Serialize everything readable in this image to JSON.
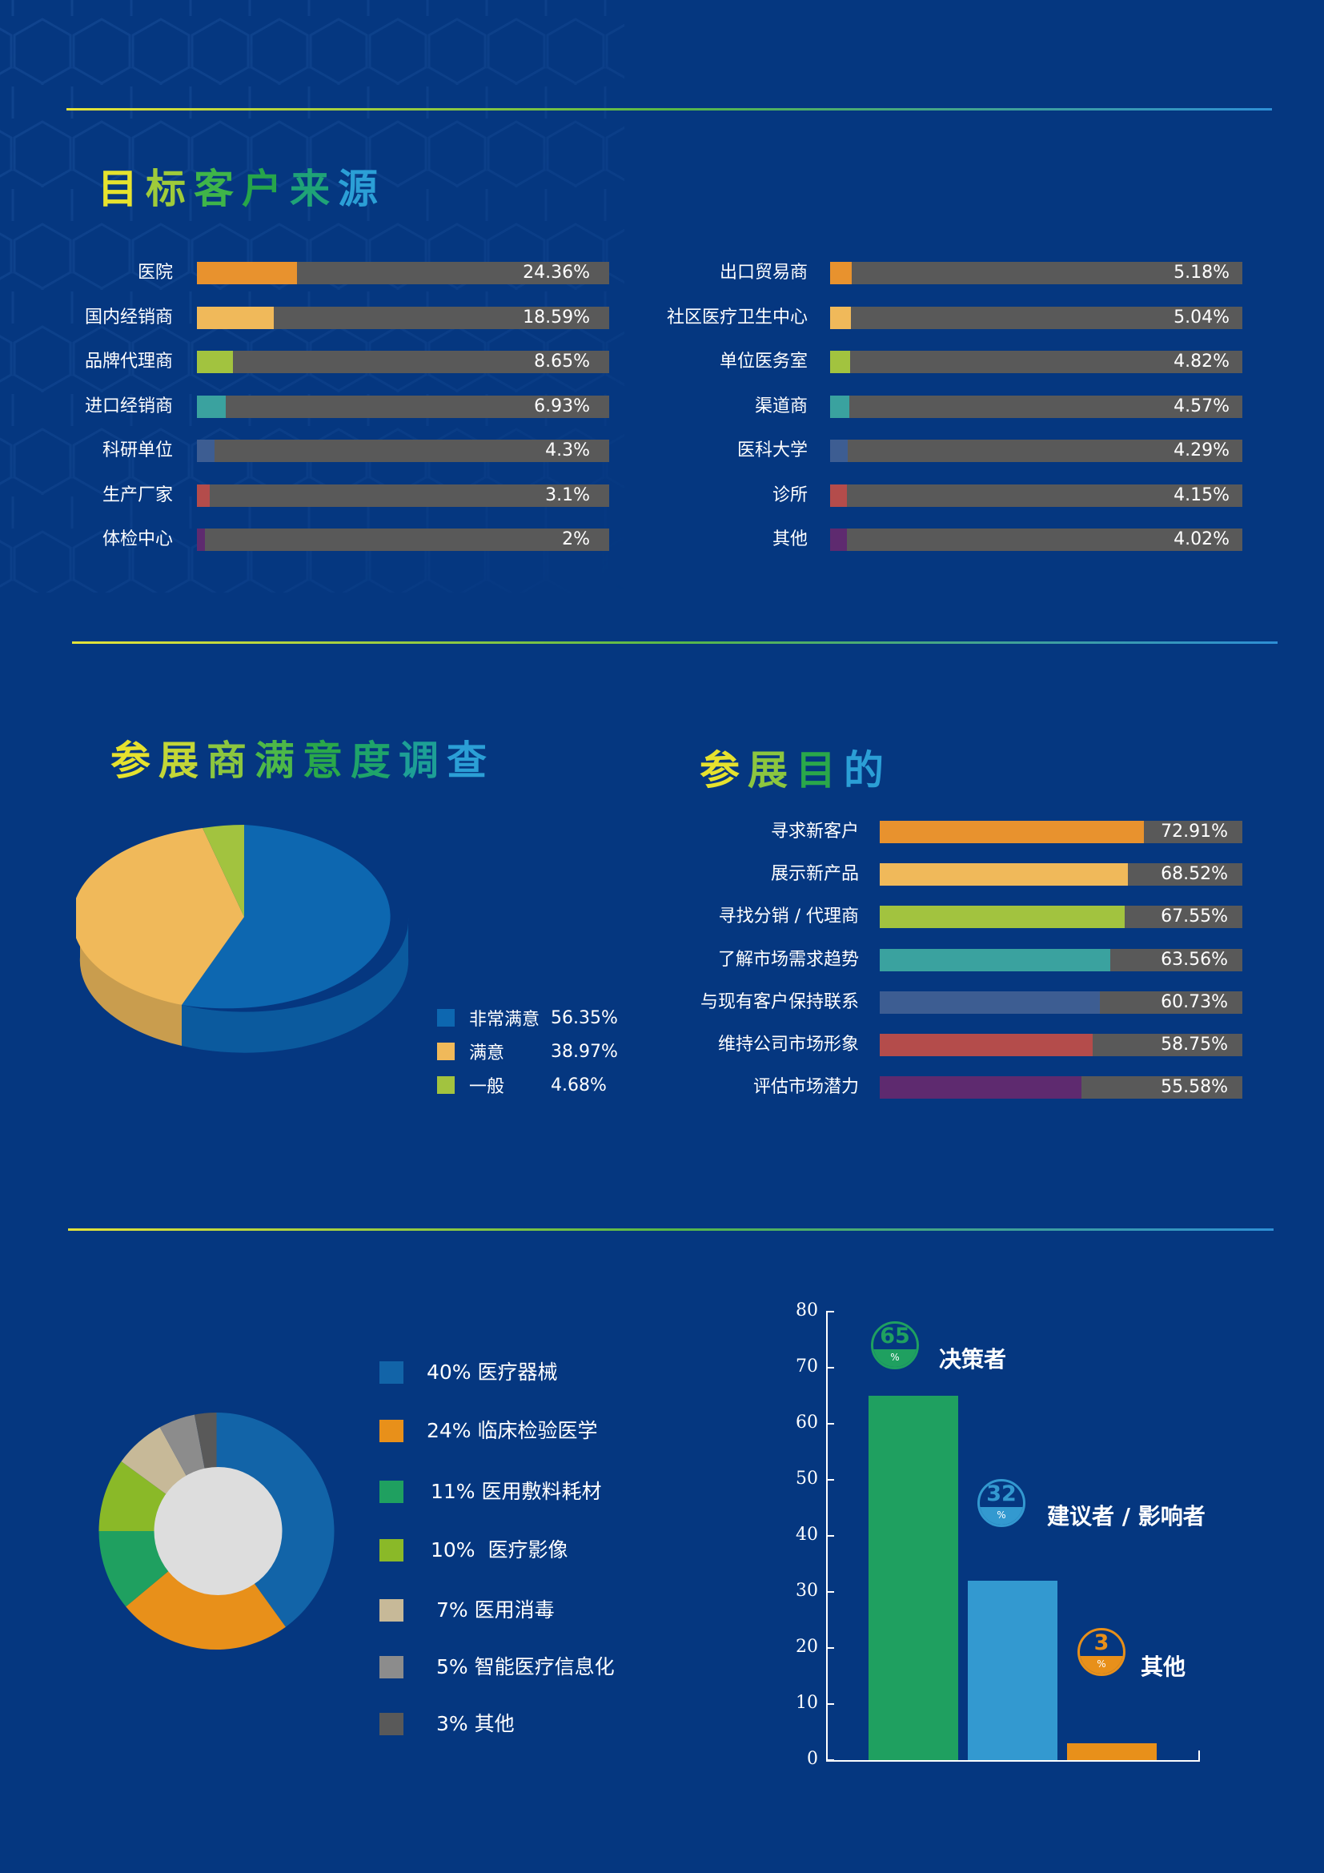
{
  "colors": {
    "background": "#053780",
    "track": "#595959",
    "orange": "#e8922e",
    "light_orange": "#f0b95a",
    "lime": "#a2c33f",
    "teal": "#3aa29f",
    "steel_blue": "#3d5d92",
    "red": "#b44c4b",
    "purple": "#5e2a6f"
  },
  "section1": {
    "title_chars": [
      "目",
      "标",
      "客",
      "户",
      "来",
      "源"
    ],
    "title_colors": [
      "#e6e22e",
      "#9fcb3a",
      "#3fb549",
      "#26a54a",
      "#1fa377",
      "#2b9fd6"
    ],
    "left_bars": [
      {
        "label": "医院",
        "value": 24.36,
        "display": "24.36%",
        "color": "#e8922e"
      },
      {
        "label": "国内经销商",
        "value": 18.59,
        "display": "18.59%",
        "color": "#f0b95a"
      },
      {
        "label": "品牌代理商",
        "value": 8.65,
        "display": "8.65%",
        "color": "#a2c33f"
      },
      {
        "label": "进口经销商",
        "value": 6.93,
        "display": "6.93%",
        "color": "#3aa29f"
      },
      {
        "label": "科研单位",
        "value": 4.3,
        "display": "4.3%",
        "color": "#3d5d92"
      },
      {
        "label": "生产厂家",
        "value": 3.1,
        "display": "3.1%",
        "color": "#b44c4b"
      },
      {
        "label": "体检中心",
        "value": 2,
        "display": "2%",
        "color": "#5e2a6f"
      }
    ],
    "right_bars": [
      {
        "label": "出口贸易商",
        "value": 5.18,
        "display": "5.18%",
        "color": "#e8922e"
      },
      {
        "label": "社区医疗卫生中心",
        "value": 5.04,
        "display": "5.04%",
        "color": "#f0b95a"
      },
      {
        "label": "单位医务室",
        "value": 4.82,
        "display": "4.82%",
        "color": "#a2c33f"
      },
      {
        "label": "渠道商",
        "value": 4.57,
        "display": "4.57%",
        "color": "#3aa29f"
      },
      {
        "label": "医科大学",
        "value": 4.29,
        "display": "4.29%",
        "color": "#3d5d92"
      },
      {
        "label": "诊所",
        "value": 4.15,
        "display": "4.15%",
        "color": "#b44c4b"
      },
      {
        "label": "其他",
        "value": 4.02,
        "display": "4.02%",
        "color": "#5e2a6f"
      }
    ]
  },
  "section2": {
    "satisfaction_title_chars": [
      "参",
      "展",
      "商",
      "满",
      "意",
      "度",
      "调",
      "查"
    ],
    "satisfaction_title_colors": [
      "#e6e22e",
      "#c3d637",
      "#8cc63f",
      "#4db848",
      "#2aa84a",
      "#1fa46a",
      "#1d9f96",
      "#2b9fd6"
    ],
    "satisfaction_legend": [
      {
        "label": "非常满意",
        "display": "56.35%",
        "color": "#0d67b0"
      },
      {
        "label": "满意",
        "display": "38.97%",
        "color": "#f0b95a"
      },
      {
        "label": "一般",
        "display": "4.68%",
        "color": "#a2c33f"
      }
    ],
    "purpose_title_chars": [
      "参",
      "展",
      "目",
      "的"
    ],
    "purpose_title_colors": [
      "#e6e22e",
      "#8cc63f",
      "#2aa84a",
      "#2b9fd6"
    ],
    "purpose_bars": [
      {
        "label": "寻求新客户",
        "value": 72.91,
        "display": "72.91%",
        "color": "#e8922e"
      },
      {
        "label": "展示新产品",
        "value": 68.52,
        "display": "68.52%",
        "color": "#f0b95a"
      },
      {
        "label": "寻找分销 / 代理商",
        "value": 67.55,
        "display": "67.55%",
        "color": "#a2c33f"
      },
      {
        "label": "了解市场需求趋势",
        "value": 63.56,
        "display": "63.56%",
        "color": "#3aa29f"
      },
      {
        "label": "与现有客户保持联系",
        "value": 60.73,
        "display": "60.73%",
        "color": "#3d5d92"
      },
      {
        "label": "维持公司市场形象",
        "value": 58.75,
        "display": "58.75%",
        "color": "#b44c4b"
      },
      {
        "label": "评估市场潜力",
        "value": 55.58,
        "display": "55.58%",
        "color": "#5e2a6f"
      }
    ]
  },
  "section3": {
    "donut_legend": [
      {
        "label": "40% 医疗器械",
        "value": 40,
        "color": "#1264a8"
      },
      {
        "label": "24% 临床检验医学",
        "value": 24,
        "color": "#e8901a"
      },
      {
        "label": "11% 医用敷料耗材",
        "value": 11,
        "color": "#1fa060"
      },
      {
        "label": "10%  医疗影像",
        "value": 10,
        "color": "#8ab928"
      },
      {
        "label": "7% 医用消毒",
        "value": 7,
        "color": "#c7b998"
      },
      {
        "label": "5% 智能医疗信息化",
        "value": 5,
        "color": "#8c8c8c"
      },
      {
        "label": "3% 其他",
        "value": 3,
        "color": "#595959"
      }
    ],
    "role_chart": {
      "y_ticks": [
        "0",
        "10",
        "20",
        "30",
        "40",
        "50",
        "60",
        "70",
        "80"
      ],
      "bars": [
        {
          "label": "决策者",
          "value": 65,
          "number": "65",
          "pct": "%",
          "color": "#1fa060"
        },
        {
          "label": "建议者 / 影响者",
          "value": 32,
          "number": "32",
          "pct": "%",
          "color": "#3399d0"
        },
        {
          "label": "其他",
          "value": 3,
          "number": "3",
          "pct": "%",
          "color": "#e8901a"
        }
      ]
    }
  },
  "chart_data": [
    {
      "type": "bar",
      "orientation": "horizontal",
      "title": "目标客户来源",
      "categories": [
        "医院",
        "国内经销商",
        "品牌代理商",
        "进口经销商",
        "科研单位",
        "生产厂家",
        "体检中心",
        "出口贸易商",
        "社区医疗卫生中心",
        "单位医务室",
        "渠道商",
        "医科大学",
        "诊所",
        "其他"
      ],
      "values": [
        24.36,
        18.59,
        8.65,
        6.93,
        4.3,
        3.1,
        2,
        5.18,
        5.04,
        4.82,
        4.57,
        4.29,
        4.15,
        4.02
      ],
      "unit": "%"
    },
    {
      "type": "pie",
      "title": "参展商满意度调查",
      "categories": [
        "非常满意",
        "满意",
        "一般"
      ],
      "values": [
        56.35,
        38.97,
        4.68
      ],
      "unit": "%"
    },
    {
      "type": "bar",
      "orientation": "horizontal",
      "title": "参展目的",
      "categories": [
        "寻求新客户",
        "展示新产品",
        "寻找分销 / 代理商",
        "了解市场需求趋势",
        "与现有客户保持联系",
        "维持公司市场形象",
        "评估市场潜力"
      ],
      "values": [
        72.91,
        68.52,
        67.55,
        63.56,
        60.73,
        58.75,
        55.58
      ],
      "unit": "%"
    },
    {
      "type": "pie",
      "subtype": "donut",
      "title": "",
      "categories": [
        "医疗器械",
        "临床检验医学",
        "医用敷料耗材",
        "医疗影像",
        "医用消毒",
        "智能医疗信息化",
        "其他"
      ],
      "values": [
        40,
        24,
        11,
        10,
        7,
        5,
        3
      ],
      "unit": "%"
    },
    {
      "type": "bar",
      "title": "",
      "categories": [
        "决策者",
        "建议者 / 影响者",
        "其他"
      ],
      "values": [
        65,
        32,
        3
      ],
      "ylim": [
        0,
        80
      ],
      "yticks": [
        0,
        10,
        20,
        30,
        40,
        50,
        60,
        70,
        80
      ],
      "unit": "%",
      "grid": false
    }
  ]
}
